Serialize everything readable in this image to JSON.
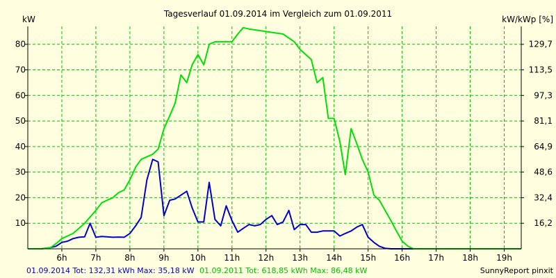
{
  "chart_data": {
    "type": "line",
    "title": "Tagesverlauf 01.09.2014 im Vergleich zum 01.09.2011",
    "ylabel_left": "kW",
    "ylabel_right": "kW/kWp [%]",
    "xlim": [
      5.0,
      19.5
    ],
    "ylim": [
      0,
      87
    ],
    "x_ticks": [
      {
        "x": 6,
        "label": "6h"
      },
      {
        "x": 7,
        "label": "7h"
      },
      {
        "x": 8,
        "label": "8h"
      },
      {
        "x": 9,
        "label": "9h"
      },
      {
        "x": 10,
        "label": "10h"
      },
      {
        "x": 11,
        "label": "11h"
      },
      {
        "x": 12,
        "label": "12h"
      },
      {
        "x": 13,
        "label": "13h"
      },
      {
        "x": 14,
        "label": "14h"
      },
      {
        "x": 15,
        "label": "15h"
      },
      {
        "x": 16,
        "label": "16h"
      },
      {
        "x": 17,
        "label": "17h"
      },
      {
        "x": 18,
        "label": "18h"
      },
      {
        "x": 19,
        "label": "19h"
      }
    ],
    "y_ticks_left": [
      {
        "y": 10,
        "label": "10"
      },
      {
        "y": 20,
        "label": "20"
      },
      {
        "y": 30,
        "label": "30"
      },
      {
        "y": 40,
        "label": "40"
      },
      {
        "y": 50,
        "label": "50"
      },
      {
        "y": 60,
        "label": "60"
      },
      {
        "y": 70,
        "label": "70"
      },
      {
        "y": 80,
        "label": "80"
      }
    ],
    "y_ticks_right": [
      {
        "y": 10,
        "label": "16,2"
      },
      {
        "y": 20,
        "label": "32,4"
      },
      {
        "y": 30,
        "label": "48,6"
      },
      {
        "y": 40,
        "label": "64,9"
      },
      {
        "y": 50,
        "label": "81,1"
      },
      {
        "y": 60,
        "label": "97,3"
      },
      {
        "y": 70,
        "label": "113,5"
      },
      {
        "y": 80,
        "label": "129,7"
      }
    ],
    "grid": true,
    "series": [
      {
        "name": "01.09.2014",
        "color": "#0000c8",
        "points": [
          [
            5.0,
            0
          ],
          [
            5.4,
            0
          ],
          [
            5.67,
            0.5
          ],
          [
            5.83,
            1
          ],
          [
            6.0,
            2.5
          ],
          [
            6.17,
            3
          ],
          [
            6.33,
            4
          ],
          [
            6.5,
            4.5
          ],
          [
            6.67,
            4.7
          ],
          [
            6.83,
            10
          ],
          [
            7.0,
            4.5
          ],
          [
            7.17,
            4.8
          ],
          [
            7.33,
            4.7
          ],
          [
            7.5,
            4.5
          ],
          [
            7.67,
            4.6
          ],
          [
            7.83,
            4.5
          ],
          [
            8.0,
            6
          ],
          [
            8.17,
            9
          ],
          [
            8.33,
            12.3
          ],
          [
            8.5,
            27
          ],
          [
            8.67,
            35
          ],
          [
            8.83,
            34
          ],
          [
            9.0,
            13
          ],
          [
            9.17,
            19
          ],
          [
            9.33,
            19.5
          ],
          [
            9.5,
            21
          ],
          [
            9.67,
            22.5
          ],
          [
            9.83,
            16
          ],
          [
            10.0,
            10.5
          ],
          [
            10.17,
            10.5
          ],
          [
            10.33,
            26
          ],
          [
            10.5,
            11.5
          ],
          [
            10.67,
            9
          ],
          [
            10.83,
            16.8
          ],
          [
            11.0,
            11
          ],
          [
            11.17,
            6.5
          ],
          [
            11.33,
            8
          ],
          [
            11.5,
            9.5
          ],
          [
            11.67,
            9
          ],
          [
            11.83,
            9.5
          ],
          [
            12.0,
            11.5
          ],
          [
            12.17,
            13
          ],
          [
            12.33,
            9.5
          ],
          [
            12.5,
            10.5
          ],
          [
            12.67,
            15
          ],
          [
            12.83,
            7.5
          ],
          [
            13.0,
            9.5
          ],
          [
            13.17,
            9.5
          ],
          [
            13.33,
            6.5
          ],
          [
            13.5,
            6.5
          ],
          [
            13.67,
            7
          ],
          [
            13.83,
            7
          ],
          [
            14.0,
            7
          ],
          [
            14.17,
            5
          ],
          [
            14.33,
            6
          ],
          [
            14.5,
            7
          ],
          [
            14.67,
            8.5
          ],
          [
            14.83,
            9.5
          ],
          [
            15.0,
            4.5
          ],
          [
            15.17,
            2.5
          ],
          [
            15.33,
            1
          ],
          [
            15.5,
            0.2
          ],
          [
            15.67,
            0
          ],
          [
            19.5,
            0
          ]
        ]
      },
      {
        "name": "01.09.2011",
        "color": "#00e000",
        "points": [
          [
            5.0,
            0
          ],
          [
            5.4,
            0
          ],
          [
            5.67,
            0.5
          ],
          [
            5.83,
            2
          ],
          [
            6.0,
            4
          ],
          [
            6.33,
            6
          ],
          [
            6.67,
            10
          ],
          [
            7.0,
            15
          ],
          [
            7.17,
            18
          ],
          [
            7.33,
            19
          ],
          [
            7.5,
            20
          ],
          [
            7.67,
            22
          ],
          [
            7.83,
            23
          ],
          [
            8.0,
            27
          ],
          [
            8.17,
            32
          ],
          [
            8.33,
            35
          ],
          [
            8.5,
            36
          ],
          [
            8.67,
            37
          ],
          [
            8.83,
            39
          ],
          [
            9.0,
            47
          ],
          [
            9.17,
            52
          ],
          [
            9.33,
            57
          ],
          [
            9.5,
            68
          ],
          [
            9.67,
            65
          ],
          [
            9.83,
            72
          ],
          [
            10.0,
            76
          ],
          [
            10.17,
            72
          ],
          [
            10.33,
            80
          ],
          [
            10.5,
            81
          ],
          [
            10.67,
            81
          ],
          [
            10.83,
            81
          ],
          [
            11.0,
            81
          ],
          [
            11.17,
            84
          ],
          [
            11.33,
            86.5
          ],
          [
            11.5,
            86
          ],
          [
            12.0,
            85
          ],
          [
            12.5,
            84
          ],
          [
            12.83,
            81
          ],
          [
            13.0,
            78
          ],
          [
            13.33,
            74
          ],
          [
            13.5,
            65
          ],
          [
            13.67,
            67
          ],
          [
            13.83,
            51
          ],
          [
            14.0,
            51
          ],
          [
            14.17,
            42
          ],
          [
            14.33,
            29
          ],
          [
            14.5,
            47
          ],
          [
            14.67,
            41
          ],
          [
            14.83,
            35
          ],
          [
            15.0,
            30
          ],
          [
            15.17,
            21
          ],
          [
            15.33,
            19
          ],
          [
            15.5,
            15
          ],
          [
            15.67,
            11
          ],
          [
            15.83,
            7
          ],
          [
            16.0,
            3
          ],
          [
            16.17,
            1
          ],
          [
            16.33,
            0
          ],
          [
            19.5,
            0
          ]
        ]
      }
    ],
    "footer": {
      "series_2014_summary": "01.09.2014 Tot: 132,31 kWh Max: 35,18 kW",
      "series_2011_summary": "01.09.2011 Tot: 618,85 kWh Max: 86,48 kW",
      "source": "SunnyReport pinxit"
    }
  }
}
